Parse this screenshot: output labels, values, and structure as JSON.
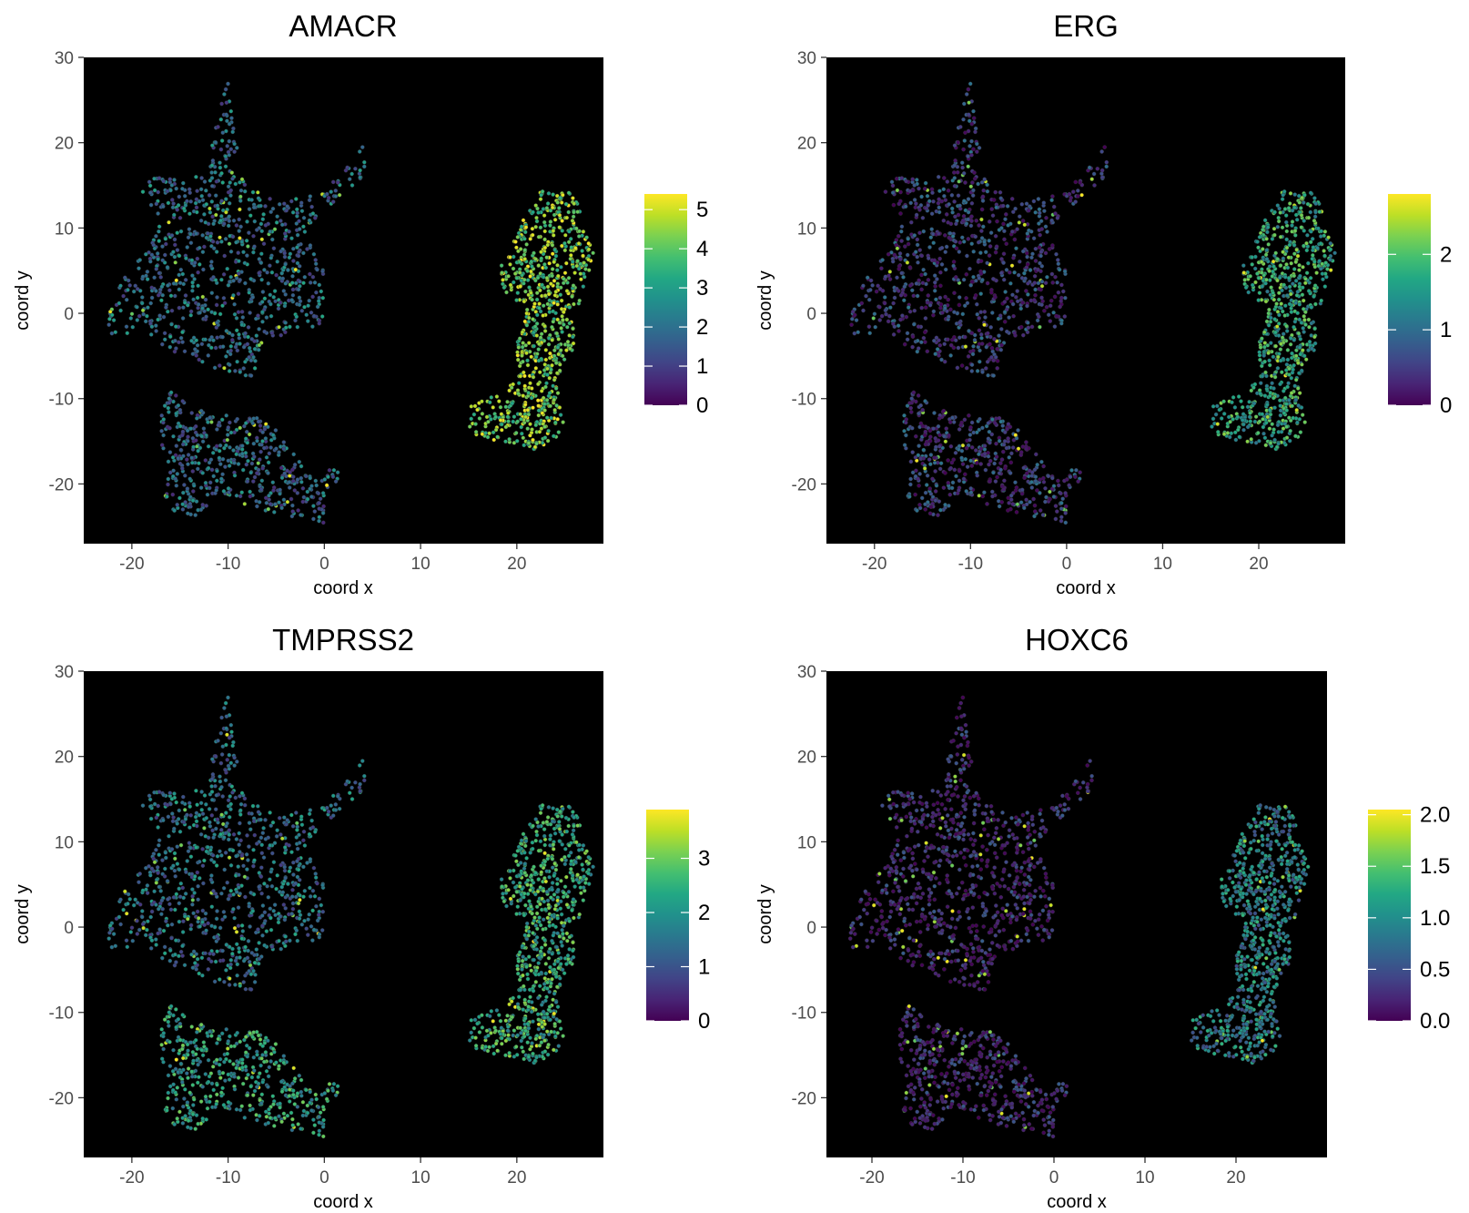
{
  "chart_data": [
    {
      "type": "scatter",
      "title": "AMACR",
      "xlabel": "coord x",
      "ylabel": "coord y",
      "xlim": [
        -25,
        29
      ],
      "ylim": [
        -27,
        30
      ],
      "x_ticks": [
        -20,
        -10,
        0,
        10,
        20
      ],
      "y_ticks": [
        30,
        20,
        10,
        0,
        -10,
        -20
      ],
      "x_tick_labels": [
        "-20",
        "-10",
        "0",
        "10",
        "20"
      ],
      "y_tick_labels": [
        "30",
        "20",
        "10",
        "0",
        "-10",
        "-20"
      ],
      "color_scale": "viridis",
      "color_range": [
        0,
        5.4
      ],
      "legend_ticks": [
        0,
        1,
        2,
        3,
        4,
        5
      ],
      "legend_tick_labels": [
        "0",
        "1",
        "2",
        "3",
        "4",
        "5"
      ],
      "panel_background": "#000000",
      "grid": false,
      "legend_position": "right",
      "expression_by_cluster": {
        "left_upper": 2.0,
        "left_lower": 1.8,
        "right": 4.2
      }
    },
    {
      "type": "scatter",
      "title": "ERG",
      "xlabel": "coord x",
      "ylabel": "coord y",
      "xlim": [
        -25,
        29
      ],
      "ylim": [
        -27,
        30
      ],
      "x_ticks": [
        -20,
        -10,
        0,
        10,
        20
      ],
      "y_ticks": [
        30,
        20,
        10,
        0,
        -10,
        -20
      ],
      "x_tick_labels": [
        "-20",
        "-10",
        "0",
        "10",
        "20"
      ],
      "y_tick_labels": [
        "30",
        "20",
        "10",
        "0",
        "-10",
        "-20"
      ],
      "color_scale": "viridis",
      "color_range": [
        0,
        2.8
      ],
      "legend_ticks": [
        0,
        1,
        2
      ],
      "legend_tick_labels": [
        "0",
        "1",
        "2"
      ],
      "panel_background": "#000000",
      "grid": false,
      "legend_position": "right",
      "expression_by_cluster": {
        "left_upper": 0.5,
        "left_lower": 0.5,
        "right": 1.7
      }
    },
    {
      "type": "scatter",
      "title": "TMPRSS2",
      "xlabel": "coord x",
      "ylabel": "coord y",
      "xlim": [
        -25,
        29
      ],
      "ylim": [
        -27,
        30
      ],
      "x_ticks": [
        -20,
        -10,
        0,
        10,
        20
      ],
      "y_ticks": [
        30,
        20,
        10,
        0,
        -10,
        -20
      ],
      "x_tick_labels": [
        "-20",
        "-10",
        "0",
        "10",
        "20"
      ],
      "y_tick_labels": [
        "30",
        "20",
        "10",
        "0",
        "-10",
        "-20"
      ],
      "color_scale": "viridis",
      "color_range": [
        0,
        3.9
      ],
      "legend_ticks": [
        0,
        1,
        2,
        3
      ],
      "legend_tick_labels": [
        "0",
        "1",
        "2",
        "3"
      ],
      "panel_background": "#000000",
      "grid": false,
      "legend_position": "right",
      "expression_by_cluster": {
        "left_upper": 1.5,
        "left_lower": 2.2,
        "right": 2.4
      }
    },
    {
      "type": "scatter",
      "title": "HOXC6",
      "xlabel": "coord x",
      "ylabel": "coord y",
      "xlim": [
        -25,
        30
      ],
      "ylim": [
        -27,
        30
      ],
      "x_ticks": [
        -20,
        -10,
        0,
        10,
        20
      ],
      "y_ticks": [
        30,
        20,
        10,
        0,
        -10,
        -20
      ],
      "x_tick_labels": [
        "-20",
        "-10",
        "0",
        "10",
        "20"
      ],
      "y_tick_labels": [
        "30",
        "20",
        "10",
        "0",
        "-10",
        "-20"
      ],
      "color_scale": "viridis",
      "color_range": [
        0,
        2.05
      ],
      "legend_ticks": [
        0,
        0.5,
        1,
        1.5,
        2
      ],
      "legend_tick_labels": [
        "0.0",
        "0.5",
        "1.0",
        "1.5",
        "2.0"
      ],
      "panel_background": "#000000",
      "grid": false,
      "legend_position": "right",
      "expression_by_cluster": {
        "left_upper": 0.15,
        "left_lower": 0.15,
        "right": 0.9
      }
    }
  ]
}
